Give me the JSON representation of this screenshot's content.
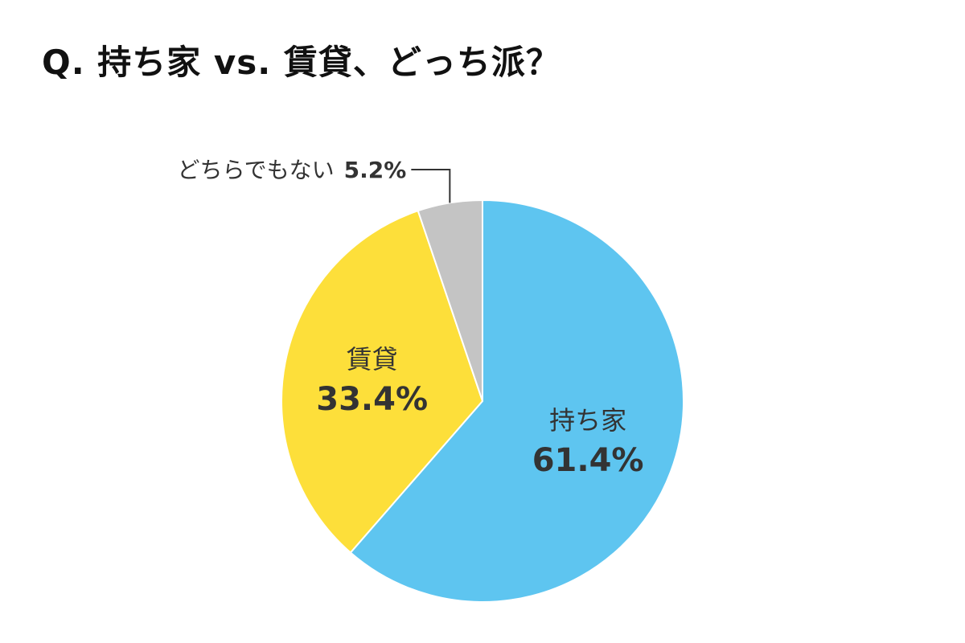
{
  "chart_data": {
    "type": "pie",
    "title": "Q. 持ち家 vs. 賃貸、どっち派？",
    "start_angle_deg": 0,
    "direction": "clockwise",
    "slices": [
      {
        "label": "持ち家",
        "value": 61.4,
        "value_text": "61.4%",
        "color": "#5ec5f0"
      },
      {
        "label": "賃貸",
        "value": 33.4,
        "value_text": "33.4%",
        "color": "#fddf3a"
      },
      {
        "label": "どちらでもない",
        "value": 5.2,
        "value_text": "5.2%",
        "color": "#c4c4c4"
      }
    ],
    "legend": "none"
  }
}
